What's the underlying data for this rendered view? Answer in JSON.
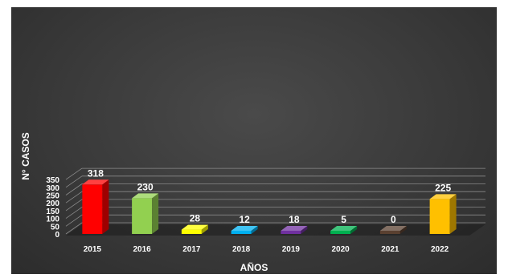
{
  "chart_data": {
    "type": "bar",
    "style": "3d-column",
    "title": "",
    "xlabel": "AÑOS",
    "ylabel": "N° CASOS",
    "categories": [
      "2015",
      "2016",
      "2017",
      "2018",
      "2019",
      "2020",
      "2021",
      "2022"
    ],
    "values": [
      318,
      230,
      28,
      12,
      18,
      5,
      0,
      225
    ],
    "data_labels": [
      "318",
      "230",
      "28",
      "12",
      "18",
      "5",
      "0",
      "225"
    ],
    "bar_colors": [
      "#ff0000",
      "#92d050",
      "#ffff00",
      "#00b0f0",
      "#7030a0",
      "#00b050",
      "#5a4030",
      "#ffc000"
    ],
    "ylim": [
      0,
      350
    ],
    "yticks": [
      "0",
      "50",
      "100",
      "150",
      "200",
      "250",
      "300",
      "350"
    ],
    "grid": true,
    "legend": "none",
    "background": "#3a3a3a"
  }
}
